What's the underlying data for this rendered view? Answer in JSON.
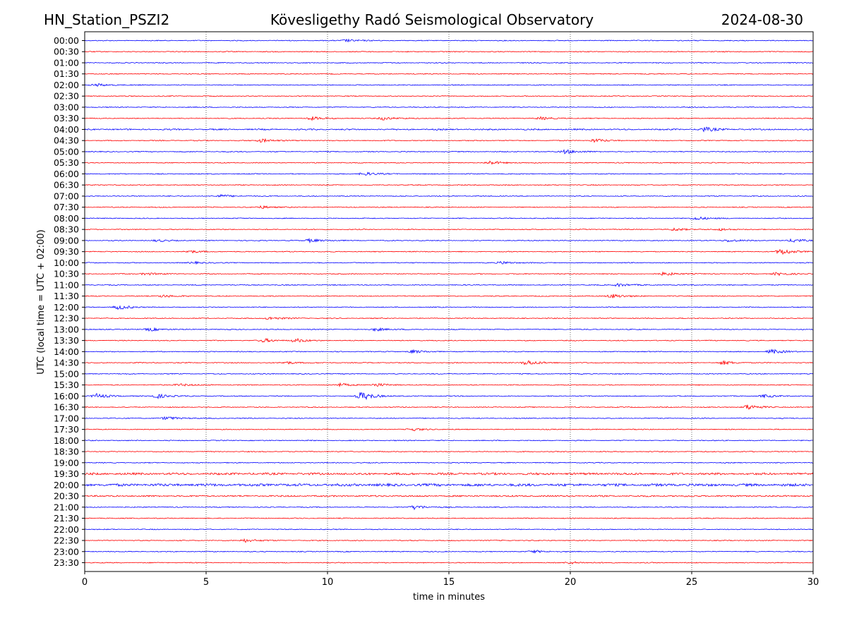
{
  "header": {
    "station": "HN_Station_PSZI2",
    "title": "Kövesligethy Radó Seismological Observatory",
    "date": "2024-08-30"
  },
  "chart_data": {
    "type": "line",
    "subtype": "helicorder",
    "xlabel": "time in minutes",
    "ylabel": "UTC (local time = UTC + 02:00)",
    "xlim": [
      0,
      30
    ],
    "xticks": [
      0,
      5,
      10,
      15,
      20,
      25,
      30
    ],
    "grid": "vertical dotted at 5-minute ticks",
    "colors": [
      "#0000ff",
      "#ff0000"
    ],
    "rows": [
      "00:00",
      "00:30",
      "01:00",
      "01:30",
      "02:00",
      "02:30",
      "03:00",
      "03:30",
      "04:00",
      "04:30",
      "05:00",
      "05:30",
      "06:00",
      "06:30",
      "07:00",
      "07:30",
      "08:00",
      "08:30",
      "09:00",
      "09:30",
      "10:00",
      "10:30",
      "11:00",
      "11:30",
      "12:00",
      "12:30",
      "13:00",
      "13:30",
      "14:00",
      "14:30",
      "15:00",
      "15:30",
      "16:00",
      "16:30",
      "17:00",
      "17:30",
      "18:00",
      "18:30",
      "19:00",
      "19:30",
      "20:00",
      "20:30",
      "21:00",
      "21:30",
      "22:00",
      "22:30",
      "23:00",
      "23:30"
    ],
    "noise_level_default": 0.6,
    "noise_level_overrides": {
      "04:00": 0.9,
      "19:30": 1.4,
      "20:00": 1.7,
      "20:30": 1.0
    },
    "events": [
      {
        "row": "00:00",
        "minute": 10.8,
        "amp": 1.5
      },
      {
        "row": "02:00",
        "minute": 0.5,
        "amp": 1.5
      },
      {
        "row": "03:30",
        "minute": 9.3,
        "amp": 2
      },
      {
        "row": "03:30",
        "minute": 12.3,
        "amp": 2
      },
      {
        "row": "03:30",
        "minute": 18.8,
        "amp": 1.5
      },
      {
        "row": "04:00",
        "minute": 25.5,
        "amp": 2.5
      },
      {
        "row": "04:30",
        "minute": 7.3,
        "amp": 2
      },
      {
        "row": "04:30",
        "minute": 21.0,
        "amp": 2
      },
      {
        "row": "05:00",
        "minute": 19.8,
        "amp": 2.5
      },
      {
        "row": "05:30",
        "minute": 16.7,
        "amp": 2
      },
      {
        "row": "06:00",
        "minute": 11.5,
        "amp": 2
      },
      {
        "row": "07:00",
        "minute": 5.6,
        "amp": 1.5
      },
      {
        "row": "07:30",
        "minute": 7.3,
        "amp": 1.5
      },
      {
        "row": "08:00",
        "minute": 25.2,
        "amp": 2
      },
      {
        "row": "08:30",
        "minute": 24.3,
        "amp": 1.5
      },
      {
        "row": "08:30",
        "minute": 26.2,
        "amp": 1.2
      },
      {
        "row": "09:00",
        "minute": 29.2,
        "amp": 2
      },
      {
        "row": "09:00",
        "minute": 9.3,
        "amp": 2
      },
      {
        "row": "09:00",
        "minute": 3.0,
        "amp": 1.2
      },
      {
        "row": "09:00",
        "minute": 26.5,
        "amp": 1.5
      },
      {
        "row": "09:30",
        "minute": 28.7,
        "amp": 3.5
      },
      {
        "row": "09:30",
        "minute": 4.3,
        "amp": 1.5
      },
      {
        "row": "10:00",
        "minute": 17.2,
        "amp": 1.5
      },
      {
        "row": "10:00",
        "minute": 4.5,
        "amp": 1.2
      },
      {
        "row": "10:30",
        "minute": 23.9,
        "amp": 2
      },
      {
        "row": "10:30",
        "minute": 28.5,
        "amp": 1.8
      },
      {
        "row": "10:30",
        "minute": 2.5,
        "amp": 1.5
      },
      {
        "row": "11:00",
        "minute": 22.0,
        "amp": 1.8
      },
      {
        "row": "11:30",
        "minute": 21.7,
        "amp": 2.5
      },
      {
        "row": "11:30",
        "minute": 3.2,
        "amp": 1.5
      },
      {
        "row": "12:00",
        "minute": 1.4,
        "amp": 2.5
      },
      {
        "row": "12:30",
        "minute": 7.6,
        "amp": 1.8
      },
      {
        "row": "13:00",
        "minute": 12.0,
        "amp": 1.8
      },
      {
        "row": "13:00",
        "minute": 2.7,
        "amp": 1.8
      },
      {
        "row": "13:30",
        "minute": 7.4,
        "amp": 2
      },
      {
        "row": "13:30",
        "minute": 8.7,
        "amp": 2
      },
      {
        "row": "14:00",
        "minute": 28.3,
        "amp": 2.5
      },
      {
        "row": "14:00",
        "minute": 13.5,
        "amp": 1.8
      },
      {
        "row": "14:30",
        "minute": 18.2,
        "amp": 3
      },
      {
        "row": "14:30",
        "minute": 26.3,
        "amp": 2
      },
      {
        "row": "14:30",
        "minute": 8.3,
        "amp": 1.5
      },
      {
        "row": "15:30",
        "minute": 10.5,
        "amp": 1.8
      },
      {
        "row": "15:30",
        "minute": 12.0,
        "amp": 1.8
      },
      {
        "row": "15:30",
        "minute": 3.9,
        "amp": 1.5
      },
      {
        "row": "16:00",
        "minute": 11.4,
        "amp": 5
      },
      {
        "row": "16:00",
        "minute": 3.0,
        "amp": 2.5
      },
      {
        "row": "16:00",
        "minute": 0.5,
        "amp": 2.5
      },
      {
        "row": "16:00",
        "minute": 28.0,
        "amp": 1.5
      },
      {
        "row": "16:30",
        "minute": 27.3,
        "amp": 3
      },
      {
        "row": "17:00",
        "minute": 3.4,
        "amp": 2
      },
      {
        "row": "17:30",
        "minute": 13.5,
        "amp": 1.5
      },
      {
        "row": "21:00",
        "minute": 13.6,
        "amp": 2.5
      },
      {
        "row": "22:30",
        "minute": 6.6,
        "amp": 2
      },
      {
        "row": "23:00",
        "minute": 18.5,
        "amp": 1.5
      },
      {
        "row": "23:30",
        "minute": 20.0,
        "amp": 1.5
      }
    ]
  }
}
